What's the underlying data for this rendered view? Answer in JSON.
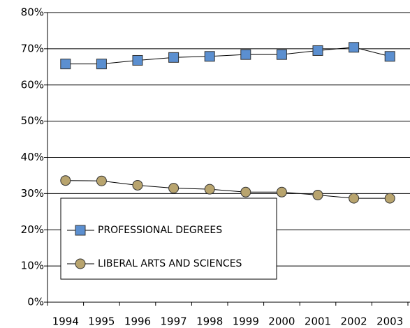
{
  "chart_data": {
    "type": "line",
    "categories": [
      "1994",
      "1995",
      "1996",
      "1997",
      "1998",
      "1999",
      "2000",
      "2001",
      "2002",
      "2003"
    ],
    "series": [
      {
        "name": "PROFESSIONAL DEGREES",
        "color": "#5b8fd0",
        "marker": "square",
        "values": [
          65.8,
          65.8,
          66.8,
          67.6,
          67.9,
          68.4,
          68.4,
          69.5,
          70.4,
          67.9
        ]
      },
      {
        "name": "LIBERAL ARTS AND SCIENCES",
        "color": "#b8a46e",
        "marker": "circle",
        "values": [
          33.6,
          33.5,
          32.3,
          31.5,
          31.2,
          30.4,
          30.4,
          29.6,
          28.7,
          28.7
        ]
      }
    ],
    "ylim": [
      0,
      80
    ],
    "yticks": [
      {
        "value": 0,
        "label": "0%"
      },
      {
        "value": 10,
        "label": "10%"
      },
      {
        "value": 20,
        "label": "20%"
      },
      {
        "value": 30,
        "label": "30%"
      },
      {
        "value": 40,
        "label": "40%"
      },
      {
        "value": 50,
        "label": "50%"
      },
      {
        "value": 60,
        "label": "60%"
      },
      {
        "value": 70,
        "label": "70%"
      },
      {
        "value": 80,
        "label": "80%"
      }
    ],
    "grid": true,
    "legend": "lower left"
  }
}
